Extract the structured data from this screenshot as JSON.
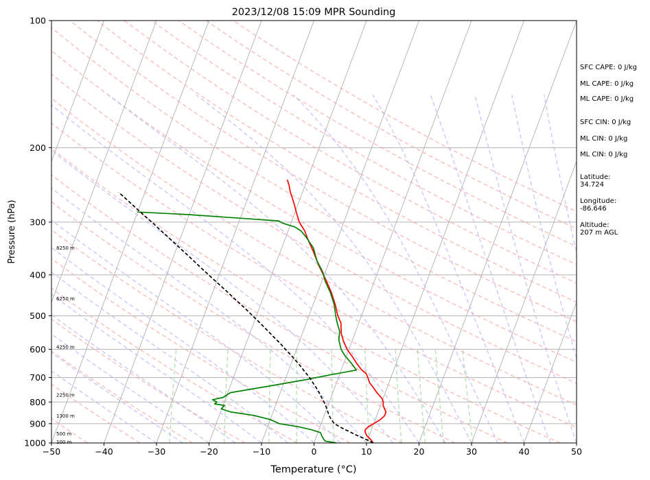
{
  "chart_data": {
    "type": "skew-t",
    "title": "2023/12/08 15:09 MPR Sounding",
    "xlabel": "Temperature (°C)",
    "ylabel": "Pressure (hPa)",
    "xlim": [
      -50,
      50
    ],
    "ylim": [
      1000,
      100
    ],
    "y_scale": "log",
    "x_ticks": [
      -50,
      -40,
      -30,
      -20,
      -10,
      0,
      10,
      20,
      30,
      40,
      50
    ],
    "x_tick_labels": [
      "−50",
      "−40",
      "−30",
      "−20",
      "−10",
      "0",
      "10",
      "20",
      "30",
      "40",
      "50"
    ],
    "y_ticks": [
      1000,
      900,
      800,
      700,
      600,
      500,
      400,
      300,
      200,
      100
    ],
    "y_tick_labels": [
      "1000",
      "900",
      "800",
      "700",
      "600",
      "500",
      "400",
      "300",
      "200",
      "100"
    ],
    "grid": true,
    "height_labels": [
      {
        "text": "100 m",
        "p": 994
      },
      {
        "text": "500 m",
        "p": 950
      },
      {
        "text": "1300 m",
        "p": 863
      },
      {
        "text": "2250 m",
        "p": 770
      },
      {
        "text": "4250 m",
        "p": 592
      },
      {
        "text": "6250 m",
        "p": 455
      },
      {
        "text": "8250 m",
        "p": 345
      }
    ],
    "series": [
      {
        "color": "#ff0000",
        "points": [
          [
            1000,
            11.3
          ],
          [
            980,
            10.5
          ],
          [
            960,
            9.5
          ],
          [
            940,
            8.9
          ],
          [
            930,
            8.8
          ],
          [
            915,
            9.2
          ],
          [
            900,
            10.0
          ],
          [
            880,
            11.0
          ],
          [
            862,
            11.5
          ],
          [
            845,
            11.5
          ],
          [
            830,
            11.0
          ],
          [
            815,
            10.5
          ],
          [
            800,
            10.3
          ],
          [
            785,
            9.8
          ],
          [
            760,
            8.4
          ],
          [
            740,
            7.4
          ],
          [
            720,
            6.3
          ],
          [
            700,
            5.6
          ],
          [
            685,
            5.0
          ],
          [
            670,
            3.8
          ],
          [
            650,
            2.6
          ],
          [
            620,
            0.9
          ],
          [
            600,
            -0.4
          ],
          [
            570,
            -1.8
          ],
          [
            550,
            -2.6
          ],
          [
            520,
            -3.4
          ],
          [
            500,
            -4.5
          ],
          [
            470,
            -5.8
          ],
          [
            440,
            -7.4
          ],
          [
            410,
            -9.4
          ],
          [
            380,
            -11.7
          ],
          [
            350,
            -13.9
          ],
          [
            330,
            -15.6
          ],
          [
            315,
            -16.8
          ],
          [
            300,
            -18.5
          ],
          [
            285,
            -19.7
          ],
          [
            270,
            -20.9
          ],
          [
            255,
            -22.3
          ],
          [
            245,
            -23.1
          ],
          [
            238,
            -23.8
          ]
        ]
      },
      {
        "color": "#008000",
        "points": [
          [
            1000,
            4.3
          ],
          [
            990,
            2.0
          ],
          [
            975,
            1.4
          ],
          [
            960,
            0.9
          ],
          [
            945,
            0.5
          ],
          [
            930,
            -1.5
          ],
          [
            915,
            -4.2
          ],
          [
            900,
            -8.0
          ],
          [
            880,
            -10.0
          ],
          [
            860,
            -13.5
          ],
          [
            845,
            -18.0
          ],
          [
            830,
            -20.1
          ],
          [
            815,
            -19.7
          ],
          [
            808,
            -21.7
          ],
          [
            800,
            -21.4
          ],
          [
            790,
            -22.4
          ],
          [
            780,
            -20.5
          ],
          [
            760,
            -19.5
          ],
          [
            735,
            -13.0
          ],
          [
            710,
            -6.5
          ],
          [
            690,
            -1.8
          ],
          [
            672,
            2.9
          ],
          [
            650,
            1.6
          ],
          [
            620,
            -0.4
          ],
          [
            600,
            -1.5
          ],
          [
            570,
            -2.6
          ],
          [
            545,
            -3.0
          ],
          [
            520,
            -4.1
          ],
          [
            500,
            -4.9
          ],
          [
            470,
            -6.0
          ],
          [
            440,
            -7.6
          ],
          [
            415,
            -9.3
          ],
          [
            395,
            -10.4
          ],
          [
            370,
            -12.4
          ],
          [
            345,
            -14.0
          ],
          [
            325,
            -16.2
          ],
          [
            315,
            -17.5
          ],
          [
            308,
            -19.0
          ],
          [
            302,
            -21.5
          ],
          [
            298,
            -22.5
          ],
          [
            292,
            -33.0
          ],
          [
            288,
            -40.0
          ],
          [
            284,
            -50.0
          ]
        ]
      },
      {
        "color": "#000000",
        "dashed": true,
        "points": [
          [
            1000,
            11.3
          ],
          [
            980,
            9.6
          ],
          [
            960,
            7.7
          ],
          [
            940,
            5.9
          ],
          [
            920,
            4.1
          ],
          [
            900,
            2.5
          ],
          [
            880,
            1.6
          ],
          [
            860,
            0.9
          ],
          [
            840,
            0.3
          ],
          [
            820,
            -0.3
          ],
          [
            800,
            -1.0
          ],
          [
            780,
            -1.8
          ],
          [
            760,
            -2.6
          ],
          [
            740,
            -3.5
          ],
          [
            720,
            -4.5
          ],
          [
            700,
            -5.5
          ],
          [
            680,
            -6.7
          ],
          [
            660,
            -7.9
          ],
          [
            640,
            -9.2
          ],
          [
            620,
            -10.6
          ],
          [
            600,
            -12.1
          ],
          [
            580,
            -13.6
          ],
          [
            560,
            -15.3
          ],
          [
            540,
            -17.0
          ],
          [
            520,
            -18.8
          ],
          [
            500,
            -20.7
          ],
          [
            480,
            -22.7
          ],
          [
            460,
            -24.9
          ],
          [
            440,
            -27.1
          ],
          [
            420,
            -29.5
          ],
          [
            400,
            -32.0
          ],
          [
            380,
            -34.6
          ],
          [
            360,
            -37.3
          ],
          [
            340,
            -40.2
          ],
          [
            320,
            -43.3
          ],
          [
            300,
            -46.6
          ],
          [
            280,
            -50.2
          ],
          [
            265,
            -53.0
          ],
          [
            255,
            -55.0
          ]
        ]
      }
    ]
  },
  "stats_text": {
    "sfc_cape": "SFC CAPE: 0 J/kg",
    "ml_cape_1": "ML CAPE: 0 J/kg",
    "ml_cape_2": "ML CAPE: 0 J/kg",
    "sfc_cin": "SFC CIN: 0 J/kg",
    "ml_cin_1": "ML CIN: 0 J/kg",
    "ml_cin_2": "ML CIN: 0 J/kg",
    "latitude": "Latitude:\n34.724",
    "longitude": "Longitude:\n-86.646",
    "altitude": "Altitude:\n207 m AGL"
  }
}
